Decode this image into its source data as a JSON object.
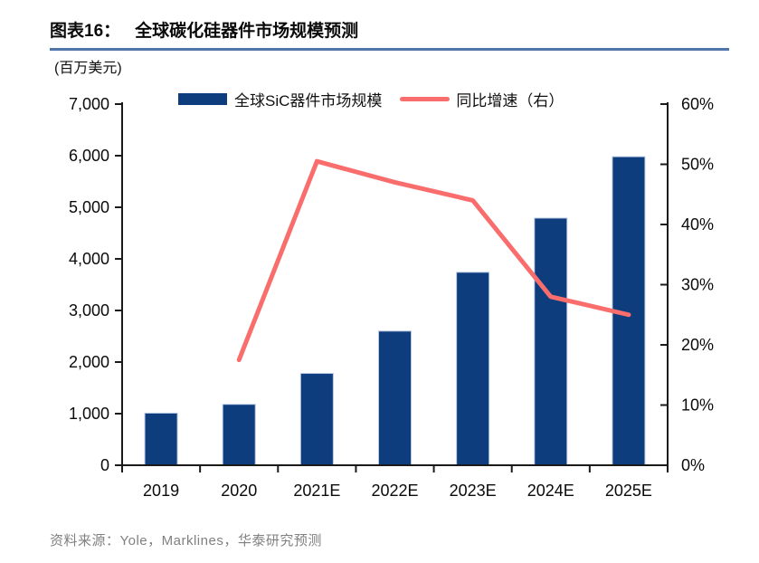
{
  "figure": {
    "label": "图表16：",
    "title": "全球碳化硅器件市场规模预测"
  },
  "chart": {
    "unit_label": "(百万美元)",
    "legend": [
      {
        "label": "全球SiC器件市场规模",
        "swatch": "bar"
      },
      {
        "label": "同比增速（右）",
        "swatch": "line"
      }
    ],
    "colors": {
      "bar": "#0d3d7c",
      "bar_edge": "#b7c6e2",
      "line": "#f96e6d",
      "axis": "#1a1a1a",
      "title_rule": "#4f76a8",
      "source_text": "#808080"
    }
  },
  "chart_data": {
    "type": "bar",
    "title": "全球碳化硅器件市场规模预测",
    "categories": [
      "2019",
      "2020",
      "2021E",
      "2022E",
      "2023E",
      "2024E",
      "2025E"
    ],
    "series": [
      {
        "name": "全球SiC器件市场规模",
        "type": "bar",
        "axis": "left",
        "unit": "百万美元",
        "values": [
          1010,
          1180,
          1780,
          2600,
          3740,
          4790,
          5980
        ]
      },
      {
        "name": "同比增速（右）",
        "type": "line",
        "axis": "right",
        "unit": "%",
        "values": [
          null,
          17.5,
          50.5,
          47,
          44,
          28,
          25
        ]
      }
    ],
    "xlabel": "",
    "ylabel_left": "(百万美元)",
    "left_axis": {
      "min": 0,
      "max": 7000,
      "step": 1000
    },
    "right_axis": {
      "min": 0,
      "max": 60,
      "step": 10,
      "suffix": "%"
    },
    "grid": false,
    "legend_position": "top"
  },
  "footer": {
    "source": "资料来源：Yole，Marklines，华泰研究预测"
  }
}
